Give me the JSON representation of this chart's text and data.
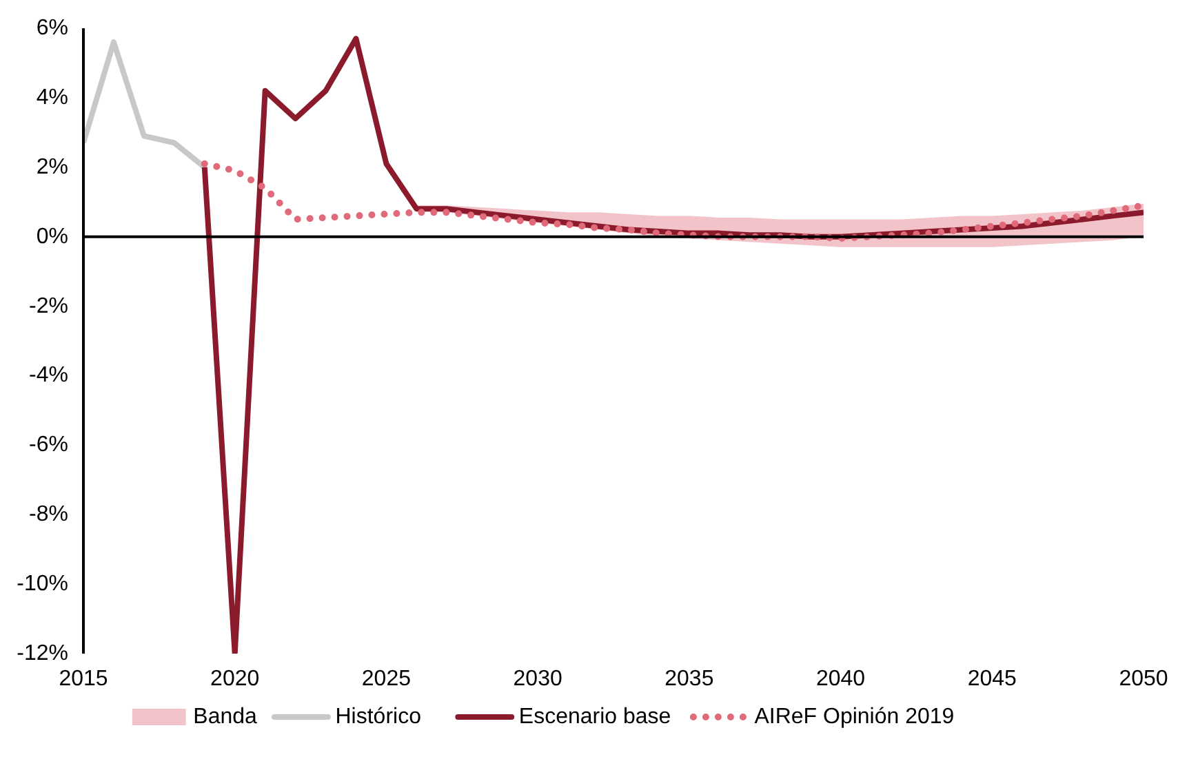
{
  "chart_data": {
    "type": "line",
    "xlim": [
      2015,
      2050
    ],
    "xticks": [
      2015,
      2020,
      2025,
      2030,
      2035,
      2040,
      2045,
      2050
    ],
    "ylim": [
      -12,
      6
    ],
    "yticks": [
      {
        "value": -12,
        "label": "-12%"
      },
      {
        "value": -10,
        "label": "-10%"
      },
      {
        "value": -8,
        "label": "-8%"
      },
      {
        "value": -6,
        "label": "-6%"
      },
      {
        "value": -4,
        "label": "-4%"
      },
      {
        "value": -2,
        "label": "-2%"
      },
      {
        "value": 0,
        "label": "0%"
      },
      {
        "value": 2,
        "label": "2%"
      },
      {
        "value": 4,
        "label": "4%"
      },
      {
        "value": 6,
        "label": "6%"
      }
    ],
    "grid": false,
    "legend": "bottom",
    "ref_lines": [
      {
        "axis": "y",
        "value": 0,
        "color": "#000000"
      }
    ],
    "series": [
      {
        "name": "Banda",
        "type": "area",
        "color": "#f2c4ca",
        "values": [
          null,
          null,
          null,
          null,
          null,
          null,
          null,
          null,
          null,
          null,
          null,
          null,
          null,
          null,
          null,
          null,
          null,
          null,
          null,
          null,
          null,
          null,
          null,
          null,
          null
        ],
        "x": [
          2026,
          2027,
          2028,
          2029,
          2030,
          2031,
          2032,
          2033,
          2034,
          2035,
          2036,
          2037,
          2038,
          2039,
          2040,
          2041,
          2042,
          2043,
          2044,
          2045,
          2046,
          2047,
          2048,
          2049,
          2050
        ],
        "upper": [
          0.9,
          0.9,
          0.85,
          0.8,
          0.75,
          0.7,
          0.7,
          0.65,
          0.6,
          0.6,
          0.55,
          0.55,
          0.5,
          0.5,
          0.5,
          0.5,
          0.5,
          0.55,
          0.6,
          0.6,
          0.65,
          0.7,
          0.75,
          0.85,
          0.95
        ],
        "lower": [
          0.8,
          0.7,
          0.6,
          0.5,
          0.4,
          0.3,
          0.2,
          0.1,
          0.0,
          -0.05,
          -0.1,
          -0.15,
          -0.2,
          -0.25,
          -0.3,
          -0.3,
          -0.3,
          -0.3,
          -0.3,
          -0.3,
          -0.25,
          -0.2,
          -0.15,
          -0.1,
          0.0
        ]
      },
      {
        "name": "Histórico",
        "type": "line",
        "color": "#c8c8c8",
        "line_style": "solid",
        "x": [
          2015,
          2016,
          2017,
          2018,
          2019
        ],
        "values": [
          2.7,
          5.6,
          2.9,
          2.7,
          2.0
        ]
      },
      {
        "name": "Escenario base",
        "type": "line",
        "color": "#8b1a2c",
        "line_style": "solid",
        "x": [
          2019,
          2020,
          2021,
          2022,
          2023,
          2024,
          2025,
          2026,
          2027,
          2028,
          2029,
          2030,
          2031,
          2032,
          2033,
          2034,
          2035,
          2036,
          2037,
          2038,
          2039,
          2040,
          2041,
          2042,
          2043,
          2044,
          2045,
          2046,
          2047,
          2048,
          2049,
          2050
        ],
        "values": [
          2.0,
          -12,
          4.2,
          3.4,
          4.2,
          5.7,
          2.1,
          0.8,
          0.8,
          0.7,
          0.6,
          0.5,
          0.4,
          0.3,
          0.2,
          0.15,
          0.1,
          0.1,
          0.05,
          0.05,
          0.0,
          0.0,
          0.05,
          0.1,
          0.15,
          0.2,
          0.25,
          0.3,
          0.4,
          0.5,
          0.6,
          0.7
        ]
      },
      {
        "name": "AIReF Opinión 2019",
        "type": "line",
        "color": "#e06a7a",
        "line_style": "dotted",
        "x": [
          2019,
          2020,
          2021,
          2022,
          2023,
          2024,
          2025,
          2026,
          2027,
          2028,
          2029,
          2030,
          2031,
          2032,
          2033,
          2034,
          2035,
          2036,
          2037,
          2038,
          2039,
          2040,
          2041,
          2042,
          2043,
          2044,
          2045,
          2046,
          2047,
          2048,
          2049,
          2050
        ],
        "values": [
          2.1,
          1.9,
          1.4,
          0.5,
          0.55,
          0.6,
          0.65,
          0.7,
          0.7,
          0.6,
          0.5,
          0.4,
          0.35,
          0.25,
          0.2,
          0.1,
          0.05,
          0.0,
          0.0,
          0.0,
          0.0,
          -0.05,
          0.0,
          0.05,
          0.1,
          0.2,
          0.3,
          0.4,
          0.5,
          0.6,
          0.75,
          0.9
        ]
      }
    ]
  }
}
